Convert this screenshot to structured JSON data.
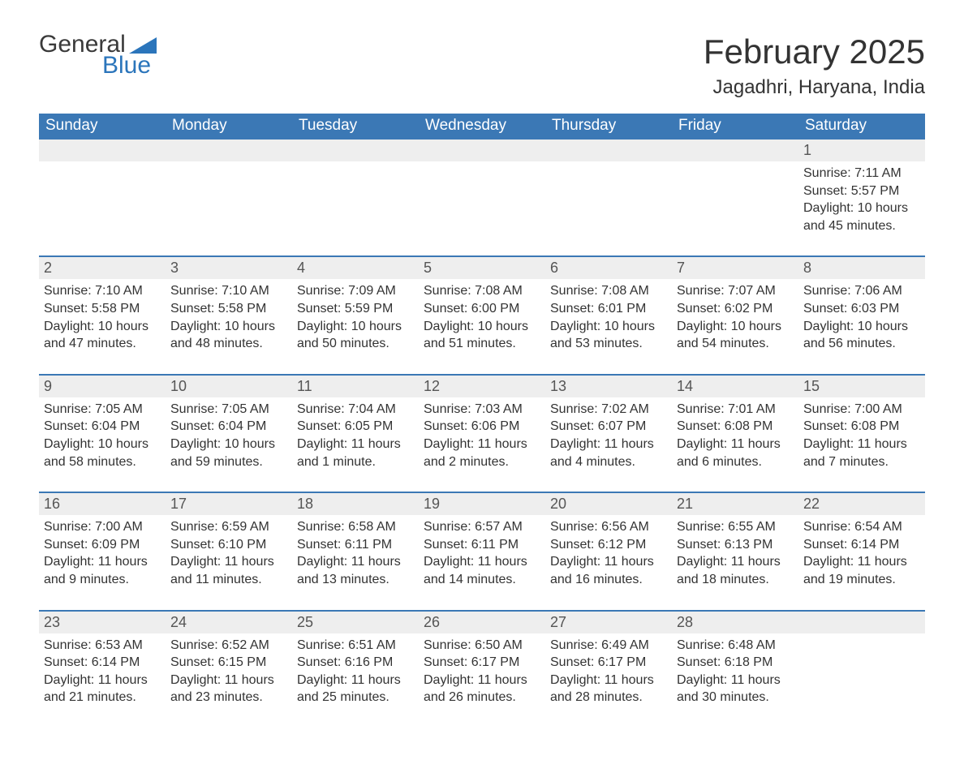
{
  "logo": {
    "word1": "General",
    "word2": "Blue"
  },
  "title": "February 2025",
  "location": "Jagadhri, Haryana, India",
  "colors": {
    "header_bg": "#3b78b5",
    "header_text": "#ffffff",
    "daynum_bg": "#eeeeee",
    "rule": "#3b78b5",
    "text": "#333333",
    "logo_blue": "#2b75bb"
  },
  "days_of_week": [
    "Sunday",
    "Monday",
    "Tuesday",
    "Wednesday",
    "Thursday",
    "Friday",
    "Saturday"
  ],
  "weeks": [
    [
      null,
      null,
      null,
      null,
      null,
      null,
      {
        "n": "1",
        "sunrise": "7:11 AM",
        "sunset": "5:57 PM",
        "daylight": "10 hours and 45 minutes."
      }
    ],
    [
      {
        "n": "2",
        "sunrise": "7:10 AM",
        "sunset": "5:58 PM",
        "daylight": "10 hours and 47 minutes."
      },
      {
        "n": "3",
        "sunrise": "7:10 AM",
        "sunset": "5:58 PM",
        "daylight": "10 hours and 48 minutes."
      },
      {
        "n": "4",
        "sunrise": "7:09 AM",
        "sunset": "5:59 PM",
        "daylight": "10 hours and 50 minutes."
      },
      {
        "n": "5",
        "sunrise": "7:08 AM",
        "sunset": "6:00 PM",
        "daylight": "10 hours and 51 minutes."
      },
      {
        "n": "6",
        "sunrise": "7:08 AM",
        "sunset": "6:01 PM",
        "daylight": "10 hours and 53 minutes."
      },
      {
        "n": "7",
        "sunrise": "7:07 AM",
        "sunset": "6:02 PM",
        "daylight": "10 hours and 54 minutes."
      },
      {
        "n": "8",
        "sunrise": "7:06 AM",
        "sunset": "6:03 PM",
        "daylight": "10 hours and 56 minutes."
      }
    ],
    [
      {
        "n": "9",
        "sunrise": "7:05 AM",
        "sunset": "6:04 PM",
        "daylight": "10 hours and 58 minutes."
      },
      {
        "n": "10",
        "sunrise": "7:05 AM",
        "sunset": "6:04 PM",
        "daylight": "10 hours and 59 minutes."
      },
      {
        "n": "11",
        "sunrise": "7:04 AM",
        "sunset": "6:05 PM",
        "daylight": "11 hours and 1 minute."
      },
      {
        "n": "12",
        "sunrise": "7:03 AM",
        "sunset": "6:06 PM",
        "daylight": "11 hours and 2 minutes."
      },
      {
        "n": "13",
        "sunrise": "7:02 AM",
        "sunset": "6:07 PM",
        "daylight": "11 hours and 4 minutes."
      },
      {
        "n": "14",
        "sunrise": "7:01 AM",
        "sunset": "6:08 PM",
        "daylight": "11 hours and 6 minutes."
      },
      {
        "n": "15",
        "sunrise": "7:00 AM",
        "sunset": "6:08 PM",
        "daylight": "11 hours and 7 minutes."
      }
    ],
    [
      {
        "n": "16",
        "sunrise": "7:00 AM",
        "sunset": "6:09 PM",
        "daylight": "11 hours and 9 minutes."
      },
      {
        "n": "17",
        "sunrise": "6:59 AM",
        "sunset": "6:10 PM",
        "daylight": "11 hours and 11 minutes."
      },
      {
        "n": "18",
        "sunrise": "6:58 AM",
        "sunset": "6:11 PM",
        "daylight": "11 hours and 13 minutes."
      },
      {
        "n": "19",
        "sunrise": "6:57 AM",
        "sunset": "6:11 PM",
        "daylight": "11 hours and 14 minutes."
      },
      {
        "n": "20",
        "sunrise": "6:56 AM",
        "sunset": "6:12 PM",
        "daylight": "11 hours and 16 minutes."
      },
      {
        "n": "21",
        "sunrise": "6:55 AM",
        "sunset": "6:13 PM",
        "daylight": "11 hours and 18 minutes."
      },
      {
        "n": "22",
        "sunrise": "6:54 AM",
        "sunset": "6:14 PM",
        "daylight": "11 hours and 19 minutes."
      }
    ],
    [
      {
        "n": "23",
        "sunrise": "6:53 AM",
        "sunset": "6:14 PM",
        "daylight": "11 hours and 21 minutes."
      },
      {
        "n": "24",
        "sunrise": "6:52 AM",
        "sunset": "6:15 PM",
        "daylight": "11 hours and 23 minutes."
      },
      {
        "n": "25",
        "sunrise": "6:51 AM",
        "sunset": "6:16 PM",
        "daylight": "11 hours and 25 minutes."
      },
      {
        "n": "26",
        "sunrise": "6:50 AM",
        "sunset": "6:17 PM",
        "daylight": "11 hours and 26 minutes."
      },
      {
        "n": "27",
        "sunrise": "6:49 AM",
        "sunset": "6:17 PM",
        "daylight": "11 hours and 28 minutes."
      },
      {
        "n": "28",
        "sunrise": "6:48 AM",
        "sunset": "6:18 PM",
        "daylight": "11 hours and 30 minutes."
      },
      null
    ]
  ],
  "labels": {
    "sunrise": "Sunrise: ",
    "sunset": "Sunset: ",
    "daylight": "Daylight: "
  }
}
